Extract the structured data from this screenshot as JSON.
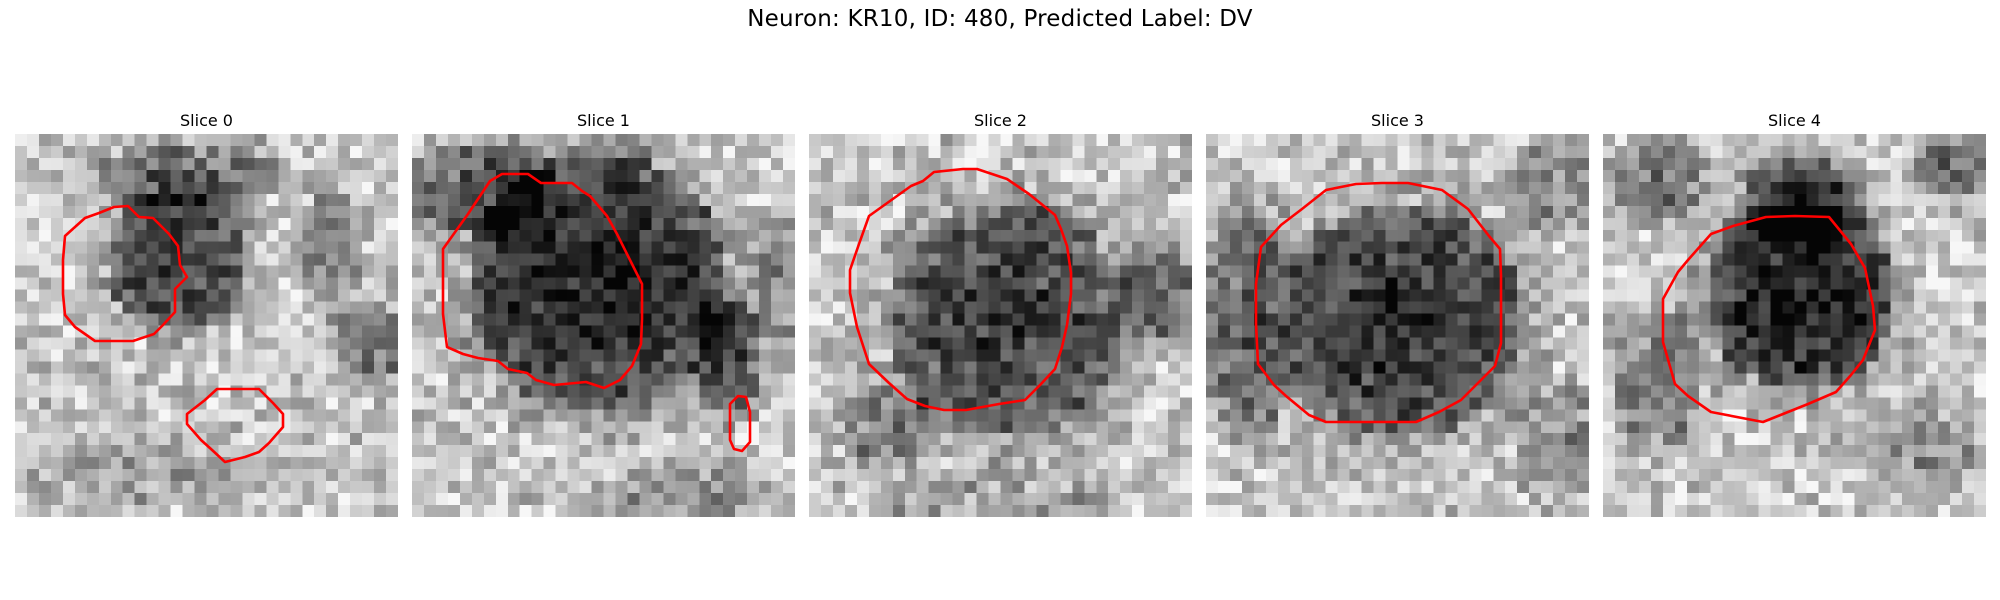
{
  "figure": {
    "title": "Neuron: KR10, ID: 480, Predicted Label: DV",
    "contour_color": "#ff0000",
    "colormap": "grayscale"
  },
  "panels": [
    {
      "title": "Slice 0"
    },
    {
      "title": "Slice 1"
    },
    {
      "title": "Slice 2"
    },
    {
      "title": "Slice 3"
    },
    {
      "title": "Slice 4"
    }
  ]
}
